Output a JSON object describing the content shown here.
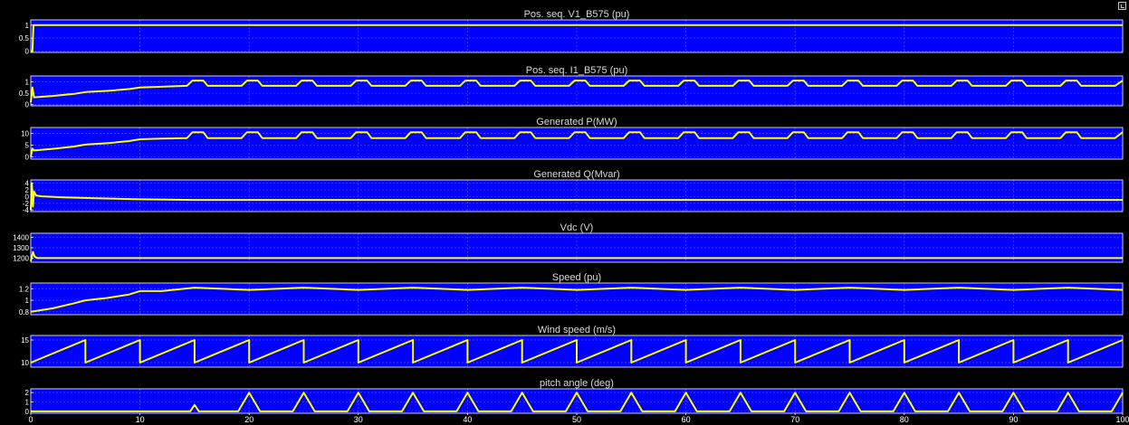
{
  "scope": {
    "undock_icon": "undock-icon",
    "x_tick_labels": [
      "0",
      "10",
      "20",
      "30",
      "40",
      "50",
      "60",
      "70",
      "80",
      "90",
      "100"
    ]
  },
  "chart_data": [
    {
      "type": "line",
      "title": "Pos. seq. V1_B575 (pu)",
      "xlim": [
        0,
        100
      ],
      "ylim": [
        -0.05,
        1.2
      ],
      "yticks": [
        0,
        0.5,
        1
      ],
      "ytick_labels": [
        "0",
        "0.5",
        "1"
      ],
      "grid": true,
      "trace_color": "#ffff00",
      "series": [
        {
          "values_note": "",
          "x": [
            0,
            0.15,
            0.25,
            100
          ],
          "y": [
            0,
            0,
            1,
            1
          ]
        }
      ]
    },
    {
      "type": "line",
      "title": "Pos. seq. I1_B575 (pu)",
      "xlim": [
        0,
        100
      ],
      "ylim": [
        -0.05,
        1.25
      ],
      "yticks": [
        0,
        0.5,
        1
      ],
      "ytick_labels": [
        "0",
        "0.5",
        "1"
      ],
      "grid": true,
      "trace_color": "#ffff00",
      "series": [
        {
          "x": [
            0,
            0.15,
            0.3,
            2,
            4,
            5,
            7,
            9,
            10,
            12,
            14.3,
            14.8,
            15.8,
            16.2,
            19.3,
            19.8,
            20.8,
            21.2,
            24.3,
            24.8,
            25.8,
            26.2,
            29.3,
            29.8,
            30.8,
            31.2,
            34.3,
            34.8,
            35.8,
            36.2,
            39.3,
            39.8,
            40.8,
            41.2,
            44.3,
            44.8,
            45.8,
            46.2,
            49.3,
            49.8,
            50.8,
            51.2,
            54.3,
            54.8,
            55.8,
            56.2,
            59.3,
            59.8,
            60.8,
            61.2,
            64.3,
            64.8,
            65.8,
            66.2,
            69.3,
            69.8,
            70.8,
            71.2,
            74.3,
            74.8,
            75.8,
            76.2,
            79.3,
            79.8,
            80.8,
            81.2,
            84.3,
            84.8,
            85.8,
            86.2,
            89.3,
            89.8,
            90.8,
            91.2,
            94.3,
            94.8,
            95.8,
            96.2,
            99.3,
            100
          ],
          "y": [
            0.1,
            0.75,
            0.32,
            0.38,
            0.47,
            0.55,
            0.6,
            0.68,
            0.75,
            0.78,
            0.82,
            1.05,
            1.05,
            0.82,
            0.82,
            1.05,
            1.05,
            0.82,
            0.82,
            1.05,
            1.05,
            0.82,
            0.82,
            1.05,
            1.05,
            0.82,
            0.82,
            1.05,
            1.05,
            0.82,
            0.82,
            1.05,
            1.05,
            0.82,
            0.82,
            1.05,
            1.05,
            0.82,
            0.82,
            1.05,
            1.05,
            0.82,
            0.82,
            1.05,
            1.05,
            0.82,
            0.82,
            1.05,
            1.05,
            0.82,
            0.82,
            1.05,
            1.05,
            0.82,
            0.82,
            1.05,
            1.05,
            0.82,
            0.82,
            1.05,
            1.05,
            0.82,
            0.82,
            1.05,
            1.05,
            0.82,
            0.82,
            1.05,
            1.05,
            0.82,
            0.82,
            1.05,
            1.05,
            0.82,
            0.82,
            1.05,
            1.05,
            0.82,
            0.82,
            1.05
          ]
        }
      ]
    },
    {
      "type": "line",
      "title": "Generated P(MW)",
      "xlim": [
        0,
        100
      ],
      "ylim": [
        -1,
        12.5
      ],
      "yticks": [
        0,
        5,
        10
      ],
      "ytick_labels": [
        "0",
        "5",
        "10"
      ],
      "grid": true,
      "trace_color": "#ffff00",
      "series": [
        {
          "x": [
            0,
            0.15,
            0.3,
            2,
            4,
            5,
            7,
            9,
            10,
            12,
            14.3,
            14.8,
            15.8,
            16.2,
            19.3,
            19.8,
            20.8,
            21.2,
            24.3,
            24.8,
            25.8,
            26.2,
            29.3,
            29.8,
            30.8,
            31.2,
            34.3,
            34.8,
            35.8,
            36.2,
            39.3,
            39.8,
            40.8,
            41.2,
            44.3,
            44.8,
            45.8,
            46.2,
            49.3,
            49.8,
            50.8,
            51.2,
            54.3,
            54.8,
            55.8,
            56.2,
            59.3,
            59.8,
            60.8,
            61.2,
            64.3,
            64.8,
            65.8,
            66.2,
            69.3,
            69.8,
            70.8,
            71.2,
            74.3,
            74.8,
            75.8,
            76.2,
            79.3,
            79.8,
            80.8,
            81.2,
            84.3,
            84.8,
            85.8,
            86.2,
            89.3,
            89.8,
            90.8,
            91.2,
            94.3,
            94.8,
            95.8,
            96.2,
            99.3,
            100
          ],
          "y": [
            0,
            3.5,
            2.7,
            3.4,
            4.4,
            5.2,
            5.8,
            6.7,
            7.5,
            7.8,
            8.0,
            10.5,
            10.5,
            8.0,
            8.0,
            10.5,
            10.5,
            8.0,
            8.0,
            10.5,
            10.5,
            8.0,
            8.0,
            10.5,
            10.5,
            8.0,
            8.0,
            10.5,
            10.5,
            8.0,
            8.0,
            10.5,
            10.5,
            8.0,
            8.0,
            10.5,
            10.5,
            8.0,
            8.0,
            10.5,
            10.5,
            8.0,
            8.0,
            10.5,
            10.5,
            8.0,
            8.0,
            10.5,
            10.5,
            8.0,
            8.0,
            10.5,
            10.5,
            8.0,
            8.0,
            10.5,
            10.5,
            8.0,
            8.0,
            10.5,
            10.5,
            8.0,
            8.0,
            10.5,
            10.5,
            8.0,
            8.0,
            10.5,
            10.5,
            8.0,
            8.0,
            10.5,
            10.5,
            8.0,
            8.0,
            10.5,
            10.5,
            8.0,
            8.0,
            10.5
          ]
        }
      ]
    },
    {
      "type": "line",
      "title": "Generated Q(Mvar)",
      "xlim": [
        0,
        100
      ],
      "ylim": [
        -4.5,
        5
      ],
      "yticks": [
        -4,
        -2,
        0,
        2,
        4
      ],
      "ytick_labels": [
        "-4",
        "-2",
        "0",
        "2",
        "4"
      ],
      "grid": true,
      "trace_color": "#ffff00",
      "series": [
        {
          "x": [
            0,
            0.1,
            0.2,
            0.3,
            0.5,
            1,
            3,
            6,
            10,
            15,
            30,
            100
          ],
          "y": [
            -4,
            4,
            -3,
            1.5,
            0.3,
            0.1,
            -0.2,
            -0.5,
            -0.8,
            -1.0,
            -1.0,
            -1.0
          ]
        }
      ]
    },
    {
      "type": "line",
      "title": "Vdc (V)",
      "xlim": [
        0,
        100
      ],
      "ylim": [
        1160,
        1440
      ],
      "yticks": [
        1200,
        1300,
        1400
      ],
      "ytick_labels": [
        "1200",
        "1300",
        "1400"
      ],
      "grid": true,
      "trace_color": "#ffff00",
      "series": [
        {
          "x": [
            0,
            0.2,
            0.35,
            0.6,
            1,
            100
          ],
          "y": [
            1170,
            1260,
            1215,
            1200,
            1200,
            1200
          ]
        }
      ]
    },
    {
      "type": "line",
      "title": "Speed (pu)",
      "xlim": [
        0,
        100
      ],
      "ylim": [
        0.75,
        1.3
      ],
      "yticks": [
        0.8,
        1,
        1.2
      ],
      "ytick_labels": [
        "0.8",
        "1",
        "1.2"
      ],
      "grid": true,
      "trace_color": "#ffff00",
      "series": [
        {
          "x": [
            0,
            2,
            4,
            5,
            7,
            9,
            10,
            12,
            15,
            20,
            25,
            30,
            35,
            40,
            45,
            50,
            55,
            60,
            65,
            70,
            75,
            80,
            85,
            90,
            95,
            100
          ],
          "y": [
            0.8,
            0.86,
            0.95,
            1.0,
            1.04,
            1.1,
            1.16,
            1.16,
            1.22,
            1.18,
            1.22,
            1.18,
            1.22,
            1.18,
            1.22,
            1.18,
            1.22,
            1.18,
            1.22,
            1.18,
            1.22,
            1.18,
            1.22,
            1.18,
            1.22,
            1.18
          ]
        }
      ]
    },
    {
      "type": "line",
      "title": "Wind speed (m/s)",
      "xlim": [
        0,
        100
      ],
      "ylim": [
        9,
        16
      ],
      "yticks": [
        10,
        15
      ],
      "ytick_labels": [
        "10",
        "15"
      ],
      "grid": true,
      "trace_color": "#ffff00",
      "series": [
        {
          "x": [
            0,
            5,
            5,
            10,
            10,
            15,
            15,
            20,
            20,
            25,
            25,
            30,
            30,
            35,
            35,
            40,
            40,
            45,
            45,
            50,
            50,
            55,
            55,
            60,
            60,
            65,
            65,
            70,
            70,
            75,
            75,
            80,
            80,
            85,
            85,
            90,
            90,
            95,
            95,
            100
          ],
          "y": [
            10,
            15,
            10,
            15,
            10,
            15,
            10,
            15,
            10,
            15,
            10,
            15,
            10,
            15,
            10,
            15,
            10,
            15,
            10,
            15,
            10,
            15,
            10,
            15,
            10,
            15,
            10,
            15,
            10,
            15,
            10,
            15,
            10,
            15,
            10,
            15,
            10,
            15,
            10,
            15
          ]
        }
      ]
    },
    {
      "type": "line",
      "title": "pitch angle (deg)",
      "xlim": [
        0,
        100
      ],
      "ylim": [
        -0.2,
        2.4
      ],
      "yticks": [
        0,
        1,
        2
      ],
      "ytick_labels": [
        "0",
        "1",
        "2"
      ],
      "grid": true,
      "trace_color": "#ffff00",
      "series": [
        {
          "x": [
            0,
            14.6,
            15,
            15.4,
            19,
            20,
            21,
            24,
            25,
            26,
            29,
            30,
            31,
            34,
            35,
            36,
            39,
            40,
            41,
            44,
            45,
            46,
            49,
            50,
            51,
            54,
            55,
            56,
            59,
            60,
            61,
            64,
            65,
            66,
            69,
            70,
            71,
            74,
            75,
            76,
            79,
            80,
            81,
            84,
            85,
            86,
            89,
            90,
            91,
            94,
            95,
            96,
            99,
            100
          ],
          "y": [
            0,
            0,
            0.7,
            0,
            0,
            2,
            0,
            0,
            2,
            0,
            0,
            2,
            0,
            0,
            2,
            0,
            0,
            2,
            0,
            0,
            2,
            0,
            0,
            2,
            0,
            0,
            2,
            0,
            0,
            2,
            0,
            0,
            2,
            0,
            0,
            2,
            0,
            0,
            2,
            0,
            0,
            2,
            0,
            0,
            2,
            0,
            0,
            2,
            0,
            0,
            2,
            0,
            0,
            2
          ]
        }
      ]
    }
  ]
}
